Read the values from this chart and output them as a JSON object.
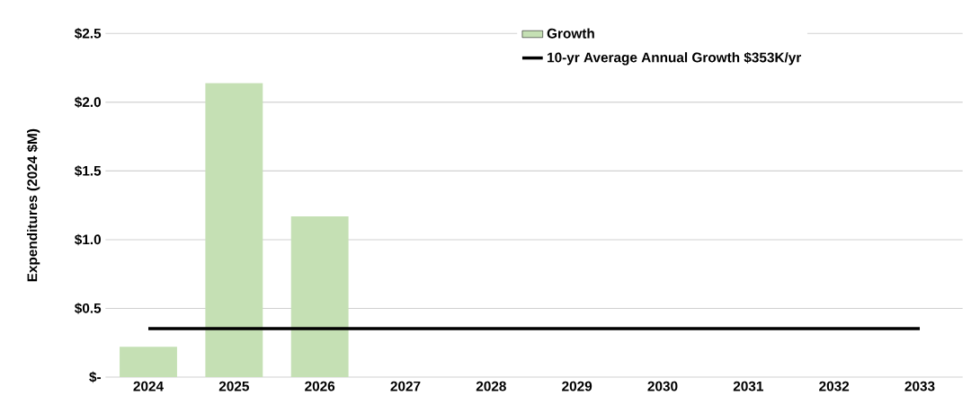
{
  "chart_data": {
    "type": "bar",
    "ylabel": "Expenditures (2024 $M)",
    "categories": [
      "2024",
      "2025",
      "2026",
      "2027",
      "2028",
      "2029",
      "2030",
      "2031",
      "2032",
      "2033"
    ],
    "series": [
      {
        "name": "Growth",
        "color": "#c5e0b4",
        "values": [
          0.22,
          2.14,
          1.17,
          0,
          0,
          0,
          0,
          0,
          0,
          0
        ]
      },
      {
        "name": "10-yr Average Annual Growth $353K/yr",
        "type": "line",
        "color": "#000000",
        "values": [
          0.353,
          0.353,
          0.353,
          0.353,
          0.353,
          0.353,
          0.353,
          0.353,
          0.353,
          0.353
        ]
      }
    ],
    "ylim": [
      0,
      2.5
    ],
    "yticks": [
      {
        "value": 0,
        "label": "$-"
      },
      {
        "value": 0.5,
        "label": "$0.5"
      },
      {
        "value": 1.0,
        "label": "$1.0"
      },
      {
        "value": 1.5,
        "label": "$1.5"
      },
      {
        "value": 2.0,
        "label": "$2.0"
      },
      {
        "value": 2.5,
        "label": "$2.5"
      }
    ],
    "grid": "y",
    "legend": "top right",
    "marker": "none"
  }
}
